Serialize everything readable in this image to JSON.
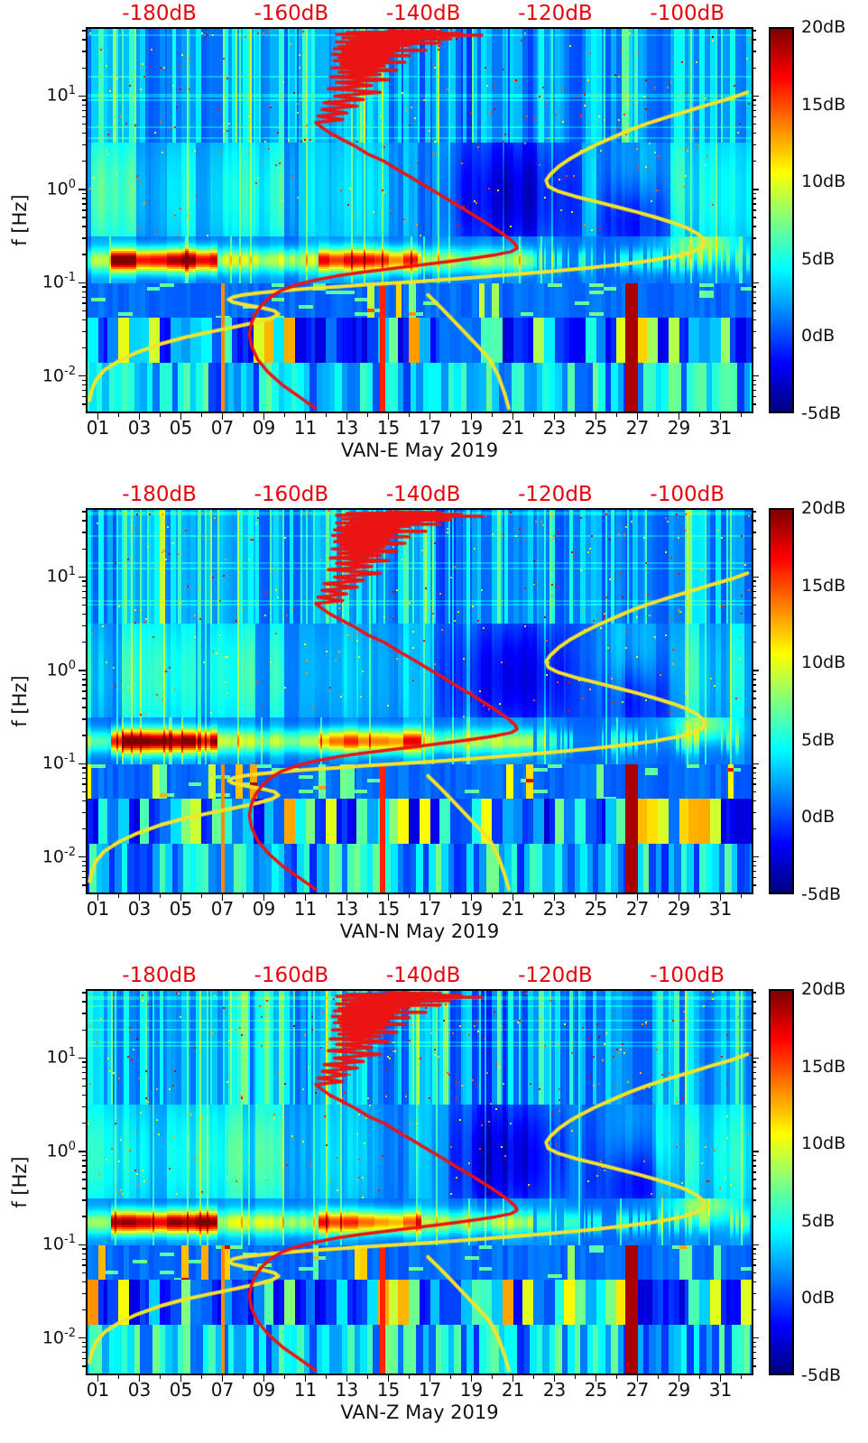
{
  "chart_data": {
    "type": "heatmap",
    "description": "Three stacked day-frequency power spectrograms (jet colormap) for station VAN components E, N, Z, May 2019, with red and yellow PSD reference curves overlaid against a secondary top dB axis.",
    "panels": [
      {
        "id": "VAN-E",
        "xlabel": "VAN-E May 2019"
      },
      {
        "id": "VAN-N",
        "xlabel": "VAN-N May 2019"
      },
      {
        "id": "VAN-Z",
        "xlabel": "VAN-Z May 2019"
      }
    ],
    "x_axis": {
      "tick_labels": [
        "01",
        "03",
        "05",
        "07",
        "09",
        "11",
        "13",
        "15",
        "17",
        "19",
        "21",
        "23",
        "25",
        "27",
        "29",
        "31"
      ],
      "tick_days": [
        1,
        3,
        5,
        7,
        9,
        11,
        13,
        15,
        17,
        19,
        21,
        23,
        25,
        27,
        29,
        31
      ],
      "range_days": [
        0.5,
        32.5
      ],
      "month": "May 2019"
    },
    "y_axis": {
      "label": "f [Hz]",
      "tick_exponents": [
        1,
        0,
        -1,
        -2
      ],
      "scale": "log",
      "range_hz": [
        0.0042,
        52
      ]
    },
    "top_axis": {
      "tick_labels": [
        "-180dB",
        "-160dB",
        "-140dB",
        "-120dB",
        "-100dB"
      ],
      "tick_values": [
        -180,
        -160,
        -140,
        -120,
        -100
      ],
      "db_at_day": {
        "db0": -180,
        "day0": 3.96,
        "day_per_db": 0.318
      }
    },
    "colorbar": {
      "tick_labels": [
        "20dB",
        "15dB",
        "10dB",
        "5dB",
        "0dB",
        "-5dB"
      ],
      "tick_values": [
        20,
        15,
        10,
        5,
        0,
        -5
      ],
      "range": [
        -5,
        20
      ],
      "colormap": "jet"
    },
    "colors": {
      "top_axis_red": "#e8000b",
      "curve_red": "#ec1313",
      "curve_yellow": "#f5e329",
      "background": "#ffffff"
    },
    "overlays": {
      "red_curve": {
        "name": "red-psd-curve",
        "points_day_hz": [
          [
            15.0,
            50
          ],
          [
            17.5,
            49
          ],
          [
            13.0,
            48
          ],
          [
            18.5,
            47
          ],
          [
            12.5,
            46
          ],
          [
            19.5,
            45
          ],
          [
            13.5,
            44
          ],
          [
            17.0,
            43
          ],
          [
            12.8,
            42
          ],
          [
            18.0,
            41
          ],
          [
            13.2,
            40
          ],
          [
            16.5,
            39
          ],
          [
            12.5,
            38
          ],
          [
            17.5,
            37
          ],
          [
            13.0,
            36
          ],
          [
            16.0,
            35
          ],
          [
            12.6,
            34
          ],
          [
            15.5,
            33
          ],
          [
            12.4,
            32
          ],
          [
            16.8,
            31
          ],
          [
            12.8,
            30
          ],
          [
            15.2,
            29
          ],
          [
            12.3,
            28
          ],
          [
            16.0,
            27
          ],
          [
            12.6,
            26
          ],
          [
            15.0,
            25
          ],
          [
            12.4,
            24
          ],
          [
            15.8,
            23
          ],
          [
            12.7,
            22
          ],
          [
            14.8,
            21
          ],
          [
            12.3,
            20
          ],
          [
            15.4,
            19
          ],
          [
            12.6,
            18
          ],
          [
            14.6,
            17
          ],
          [
            12.2,
            16
          ],
          [
            15.0,
            15
          ],
          [
            12.5,
            14
          ],
          [
            14.2,
            13
          ],
          [
            12.1,
            12
          ],
          [
            14.6,
            11
          ],
          [
            12.4,
            10
          ],
          [
            13.8,
            9.2
          ],
          [
            11.9,
            8.5
          ],
          [
            13.5,
            7.8
          ],
          [
            11.8,
            7.2
          ],
          [
            13.0,
            6.6
          ],
          [
            11.6,
            6.1
          ],
          [
            12.8,
            5.6
          ],
          [
            11.5,
            5.2
          ],
          [
            11.8,
            4.6
          ],
          [
            12.2,
            4.0
          ],
          [
            12.8,
            3.4
          ],
          [
            13.4,
            2.9
          ],
          [
            14.0,
            2.4
          ],
          [
            14.8,
            2.0
          ],
          [
            15.5,
            1.6
          ],
          [
            16.2,
            1.3
          ],
          [
            16.9,
            1.05
          ],
          [
            17.6,
            0.85
          ],
          [
            18.3,
            0.68
          ],
          [
            19.0,
            0.55
          ],
          [
            19.7,
            0.44
          ],
          [
            20.3,
            0.36
          ],
          [
            20.8,
            0.3
          ],
          [
            21.1,
            0.26
          ],
          [
            21.2,
            0.235
          ],
          [
            20.9,
            0.215
          ],
          [
            20.2,
            0.2
          ],
          [
            19.2,
            0.185
          ],
          [
            18.0,
            0.17
          ],
          [
            16.6,
            0.155
          ],
          [
            15.2,
            0.142
          ],
          [
            13.8,
            0.13
          ],
          [
            12.5,
            0.118
          ],
          [
            11.4,
            0.106
          ],
          [
            10.5,
            0.094
          ],
          [
            9.8,
            0.082
          ],
          [
            9.3,
            0.07
          ],
          [
            8.9,
            0.058
          ],
          [
            8.6,
            0.047
          ],
          [
            8.4,
            0.037
          ],
          [
            8.3,
            0.028
          ],
          [
            8.4,
            0.021
          ],
          [
            8.7,
            0.015
          ],
          [
            9.2,
            0.011
          ],
          [
            9.9,
            0.008
          ],
          [
            10.7,
            0.006
          ],
          [
            11.5,
            0.0045
          ]
        ]
      },
      "yellow_curve": {
        "name": "yellow-psd-curve",
        "points_day_hz": [
          [
            32.3,
            11
          ],
          [
            31.5,
            9.5
          ],
          [
            30.5,
            8.2
          ],
          [
            29.5,
            7.0
          ],
          [
            28.5,
            6.0
          ],
          [
            27.5,
            5.1
          ],
          [
            26.6,
            4.3
          ],
          [
            25.8,
            3.6
          ],
          [
            25.0,
            3.0
          ],
          [
            24.3,
            2.5
          ],
          [
            23.7,
            2.1
          ],
          [
            23.2,
            1.75
          ],
          [
            22.8,
            1.45
          ],
          [
            22.6,
            1.25
          ],
          [
            22.7,
            1.08
          ],
          [
            23.2,
            0.95
          ],
          [
            24.0,
            0.84
          ],
          [
            25.0,
            0.74
          ],
          [
            26.0,
            0.65
          ],
          [
            27.0,
            0.57
          ],
          [
            27.9,
            0.5
          ],
          [
            28.7,
            0.44
          ],
          [
            29.4,
            0.385
          ],
          [
            29.9,
            0.335
          ],
          [
            30.2,
            0.29
          ],
          [
            30.2,
            0.25
          ],
          [
            29.8,
            0.22
          ],
          [
            29.0,
            0.195
          ],
          [
            27.8,
            0.175
          ],
          [
            26.3,
            0.158
          ],
          [
            24.6,
            0.144
          ],
          [
            22.8,
            0.132
          ],
          [
            20.9,
            0.122
          ],
          [
            19.0,
            0.113
          ],
          [
            17.2,
            0.106
          ],
          [
            15.5,
            0.1
          ],
          [
            13.9,
            0.095
          ],
          [
            12.4,
            0.09
          ],
          [
            11.0,
            0.086
          ],
          [
            9.8,
            0.082
          ],
          [
            8.8,
            0.078
          ],
          [
            8.0,
            0.074
          ],
          [
            7.5,
            0.07
          ],
          [
            7.3,
            0.066
          ],
          [
            7.5,
            0.062
          ],
          [
            8.1,
            0.058
          ],
          [
            8.9,
            0.054
          ],
          [
            9.5,
            0.05
          ],
          [
            9.7,
            0.046
          ],
          [
            9.4,
            0.042
          ],
          [
            8.7,
            0.038
          ],
          [
            7.7,
            0.034
          ],
          [
            6.5,
            0.03
          ],
          [
            5.2,
            0.026
          ],
          [
            4.0,
            0.022
          ],
          [
            2.9,
            0.018
          ],
          [
            2.0,
            0.0145
          ],
          [
            1.3,
            0.0115
          ],
          [
            0.9,
            0.009
          ],
          [
            0.7,
            0.007
          ],
          [
            0.6,
            0.0055
          ]
        ]
      },
      "yellow_segment": {
        "name": "yellow-psd-curve-lower-branch",
        "points_day_hz": [
          [
            16.9,
            0.074
          ],
          [
            17.5,
            0.055
          ],
          [
            18.1,
            0.04
          ],
          [
            18.7,
            0.029
          ],
          [
            19.3,
            0.021
          ],
          [
            19.9,
            0.015
          ],
          [
            20.3,
            0.01
          ],
          [
            20.6,
            0.0065
          ],
          [
            20.8,
            0.0045
          ]
        ]
      }
    },
    "heatmap_features": [
      "strong red-hot band near 0.15-0.2 Hz on days 2-6 and 12-16",
      "cyan vertical striping above 3 Hz across all days",
      "dark quiet patch around days 18-24 between 0.1 and 3 Hz",
      "colored low-frequency bar columns below 0.04 Hz",
      "dark-red vertical streak near day 26.7 below 0.1 Hz",
      "yellow-orange patch near days 29-31 around 0.25-0.35 Hz"
    ]
  }
}
